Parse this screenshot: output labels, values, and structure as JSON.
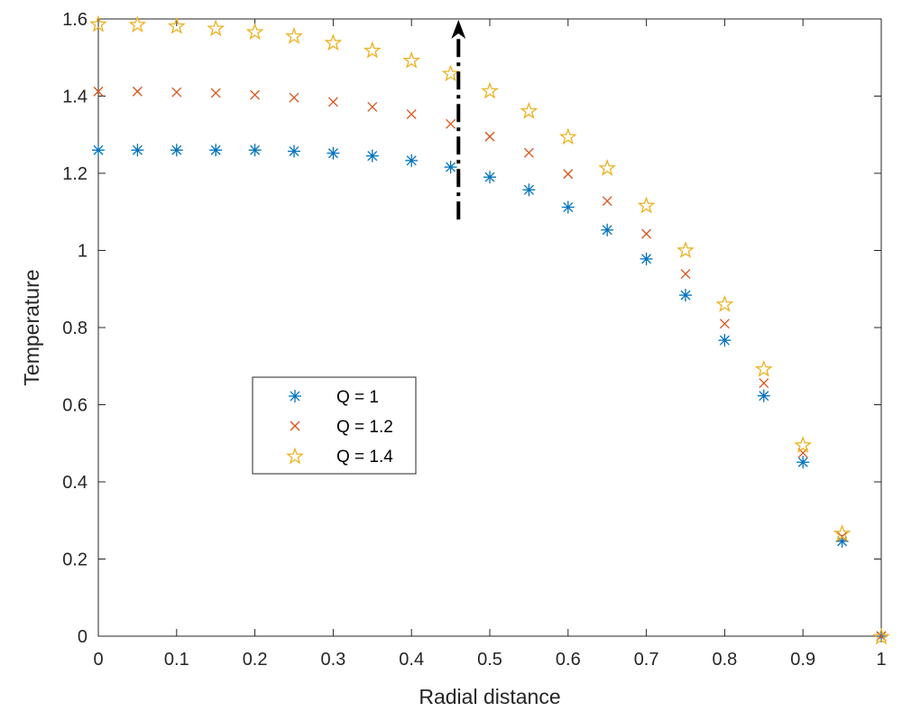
{
  "chart_data": {
    "type": "scatter",
    "xlabel": "Radial distance",
    "ylabel": "Temperature",
    "xlim": [
      0,
      1
    ],
    "ylim": [
      0,
      1.6
    ],
    "xticks": [
      "0",
      "0.1",
      "0.2",
      "0.3",
      "0.4",
      "0.5",
      "0.6",
      "0.7",
      "0.8",
      "0.9",
      "1"
    ],
    "yticks": [
      "0",
      "0.2",
      "0.4",
      "0.6",
      "0.8",
      "1",
      "1.2",
      "1.4",
      "1.6"
    ],
    "grid": false,
    "legend_position": "center-left",
    "x": [
      0,
      0.05,
      0.1,
      0.15,
      0.2,
      0.25,
      0.3,
      0.35,
      0.4,
      0.45,
      0.5,
      0.55,
      0.6,
      0.65,
      0.7,
      0.75,
      0.8,
      0.85,
      0.9,
      0.95,
      1
    ],
    "series": [
      {
        "name": "Q = 1",
        "marker": "asterisk",
        "color": "#0072BD",
        "values": [
          1.26,
          1.26,
          1.26,
          1.26,
          1.26,
          1.257,
          1.252,
          1.245,
          1.233,
          1.216,
          1.19,
          1.157,
          1.112,
          1.053,
          0.978,
          0.884,
          0.767,
          0.623,
          0.451,
          0.246,
          0
        ]
      },
      {
        "name": "Q = 1.2",
        "marker": "cross",
        "color": "#D95319",
        "values": [
          1.412,
          1.412,
          1.41,
          1.408,
          1.403,
          1.396,
          1.385,
          1.372,
          1.353,
          1.328,
          1.295,
          1.253,
          1.198,
          1.128,
          1.043,
          0.939,
          0.81,
          0.656,
          0.475,
          0.258,
          0
        ]
      },
      {
        "name": "Q = 1.4",
        "marker": "pentagram",
        "color": "#EDB120",
        "values": [
          1.588,
          1.587,
          1.583,
          1.577,
          1.568,
          1.557,
          1.54,
          1.52,
          1.494,
          1.46,
          1.415,
          1.363,
          1.296,
          1.215,
          1.118,
          1.002,
          0.862,
          0.694,
          0.497,
          0.268,
          0
        ]
      }
    ],
    "annotations": [
      {
        "type": "arrow",
        "style": "dash-dot",
        "color": "#000000",
        "x": 0.46,
        "y_from": 1.08,
        "y_to": 1.6
      }
    ]
  }
}
